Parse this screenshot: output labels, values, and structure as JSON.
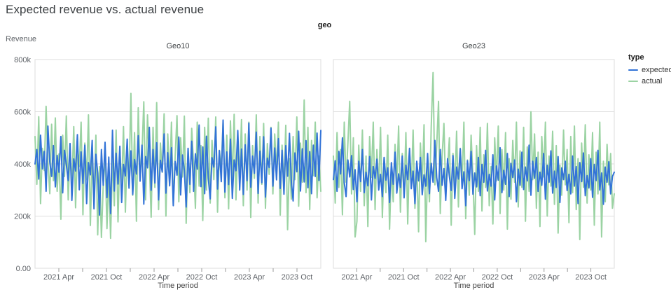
{
  "header": {
    "title": "Expected revenue vs. actual revenue"
  },
  "chart_data": {
    "type": "line",
    "title": "Expected revenue vs. actual revenue",
    "facet_field": "geo",
    "xlabel": "Time period",
    "ylabel": "Revenue",
    "x_tick_labels": [
      "2021 Apr",
      "2021 Oct",
      "2022 Apr",
      "2022 Oct",
      "2023 Apr",
      "2023 Oct"
    ],
    "x_domain": [
      "2021 Jan",
      "2024 Jan"
    ],
    "x_minor_tick_interval_months": 3,
    "y_tick_labels": [
      "0.00",
      "200k",
      "400k",
      "600k",
      "800k"
    ],
    "y_tick_values": [
      0,
      200,
      400,
      600,
      800
    ],
    "ylim": [
      0,
      800000
    ],
    "values_unit": "thousands (k)",
    "grid": true,
    "colors": {
      "expected": "#3273d7",
      "actual": "#9bd3a3",
      "grid": "#dddddd",
      "axis_text": "#5f6368",
      "tick": "#999999"
    },
    "legend": {
      "title": "type",
      "position": "right",
      "items": [
        {
          "label": "expected",
          "color": "#3273d7"
        },
        {
          "label": "actual",
          "color": "#9bd3a3"
        }
      ]
    },
    "facets": [
      {
        "name": "Geo10",
        "series": [
          {
            "name": "actual",
            "color": "#9bd3a3",
            "values": [
              505,
              322,
              581,
              248,
              460,
              375,
              621,
              410,
              286,
              552,
              336,
              576,
              295,
              438,
              188,
              510,
              352,
              584,
              262,
              455,
              310,
              543,
              232,
              472,
              390,
              560,
              205,
              480,
              340,
              588,
              164,
              425,
              265,
              510,
              128,
              390,
              118,
              320,
              440,
              152,
              372,
              115,
              426,
              240,
              530,
              178,
              455,
              305,
              543,
              215,
              460,
              331,
              670,
              280,
              520,
              180,
              615,
              345,
              440,
              638,
              262,
              588,
              410,
              196,
              540,
              310,
              635,
              225,
              480,
              368,
              592,
              200,
              515,
              330,
              560,
              245,
              428,
              585,
              255,
              500,
              350,
              583,
              172,
              450,
              290,
              536,
              398,
              230,
              560,
              315,
              470,
              183,
              540,
              300,
              575,
              250,
              490,
              340,
              580,
              215,
              452,
              382,
              560,
              270,
              510,
              228,
              565,
              330,
              590,
              262,
              484,
              350,
              570,
              240,
              515,
              300,
              560,
              195,
              470,
              345,
              588,
              250,
              505,
              322,
              555,
              230,
              478,
              360,
              540,
              285,
              515,
              370,
              560,
              204,
              472,
              312,
              548,
              148,
              420,
              265,
              505,
              340,
              580,
              238,
              480,
              330,
              645,
              290,
              540,
              225,
              490,
              355,
              560,
              270,
              430,
              295
            ]
          },
          {
            "name": "expected",
            "color": "#3273d7",
            "values": [
              400,
              455,
              342,
              510,
              381,
              448,
              295,
              545,
              406,
              352,
              470,
              312,
              433,
              368,
              505,
              289,
              452,
              397,
              336,
              478,
              260,
              419,
              373,
              512,
              301,
              446,
              325,
              472,
              248,
              405,
              358,
              490,
              228,
              437,
              366,
              204,
              455,
              318,
              483,
              271,
              426,
              210,
              529,
              296,
              441,
              323,
              468,
              252,
              398,
              354,
              495,
              307,
              450,
              283,
              417,
              361,
              508,
              334,
              472,
              246,
              428,
              385,
              540,
              299,
              455,
              327,
              481,
              262,
              414,
              369,
              515,
              288,
              443,
              316,
              462,
              240,
              409,
              357,
              503,
              281,
              434,
              375,
              235,
              460,
              322,
              487,
              295,
              439,
              380,
              549,
              313,
              465,
              286,
              506,
              345,
              266,
              424,
              388,
              542,
              304,
              451,
              332,
              568,
              292,
              446,
              321,
              495,
              268,
              415,
              374,
              528,
              300,
              457,
              283,
              473,
              336,
              556,
              311,
              430,
              364,
              522,
              287,
              449,
              328,
              504,
              273,
              422,
              386,
              537,
              315,
              461,
              339,
              497,
              306,
              452,
              284,
              470,
              353,
              517,
              335,
              258,
              442,
              370,
              525,
              296,
              458,
              331,
              489,
              309,
              447,
              286,
              472,
              352,
              518,
              337,
              528
            ]
          }
        ]
      },
      {
        "name": "Geo23",
        "series": [
          {
            "name": "actual",
            "color": "#9bd3a3",
            "values": [
              430,
              250,
              520,
              310,
              455,
              205,
              560,
              330,
              480,
              640,
              285,
              500,
              120,
              180,
              472,
              295,
              530,
              240,
              430,
              160,
              505,
              348,
              560,
              225,
              455,
              310,
              540,
              195,
              420,
              290,
              510,
              150,
              390,
              255,
              475,
              330,
              545,
              215,
              440,
              285,
              520,
              170,
              450,
              310,
              530,
              230,
              410,
              140,
              480,
              325,
              550,
              102,
              390,
              255,
              545,
              750,
              320,
              470,
              640,
              210,
              430,
              555,
              290,
              380,
              500,
              165,
              440,
              305,
              525,
              235,
              460,
              330,
              560,
              190,
              415,
              280,
              510,
              350,
              130,
              470,
              295,
              540,
              220,
              435,
              310,
              555,
              240,
              390,
              170,
              500,
              335,
              545,
              210,
              455,
              300,
              520,
              150,
              420,
              265,
              490,
              330,
              560,
              235,
              450,
              310,
              540,
              180,
              465,
              295,
              600,
              340,
              515,
              230,
              445,
              160,
              505,
              350,
              560,
              200,
              430,
              315,
              525,
              245,
              470,
              135,
              395,
              280,
              530,
              320,
              455,
              175,
              505,
              290,
              545,
              225,
              420,
              110,
              480,
              310,
              550,
              250,
              435,
              300,
              520,
              165,
              445,
              285,
              560,
              120,
              410,
              255,
              475,
              320,
              440,
              230,
              285
            ]
          },
          {
            "name": "expected",
            "color": "#3273d7",
            "values": [
              340,
              412,
              295,
              448,
              362,
              500,
              328,
              275,
              415,
              350,
              432,
              302,
              378,
              255,
              410,
              332,
              455,
              290,
              368,
              316,
              428,
              262,
              390,
              345,
              418,
              300,
              360,
              275,
              425,
              338,
              385,
              252,
              405,
              322,
              445,
              288,
              362,
              310,
              430,
              270,
              395,
              340,
              460,
              305,
              372,
              248,
              410,
              335,
              425,
              282,
              358,
              315,
              440,
              286,
              402,
              330,
              490,
              348,
              295,
              455,
              318,
              382,
              260,
              420,
              352,
              298,
              432,
              268,
              388,
              342,
              458,
              305,
              370,
              240,
              412,
              336,
              448,
              284,
              365,
              312,
              425,
              278,
              398,
              330,
              452,
              296,
              360,
              315,
              435,
              262,
              392,
              338,
              462,
              290,
              375,
              322,
              440,
              275,
              402,
              348,
              415,
              255,
              380,
              318,
              445,
              302,
              388,
              335,
              472,
              280,
              410,
              345,
              425,
              295,
              368,
              318,
              440,
              265,
              395,
              330,
              450,
              288,
              372,
              310,
              428,
              252,
              385,
              340,
              410,
              298,
              360,
              285,
              430,
              315,
              390,
              248,
              405,
              332,
              442,
              278,
              355,
              308,
              420,
              272,
              398,
              336,
              452,
              300,
              365,
              245,
              388,
              330,
              408,
              285,
              352,
              368
            ]
          }
        ]
      }
    ]
  }
}
